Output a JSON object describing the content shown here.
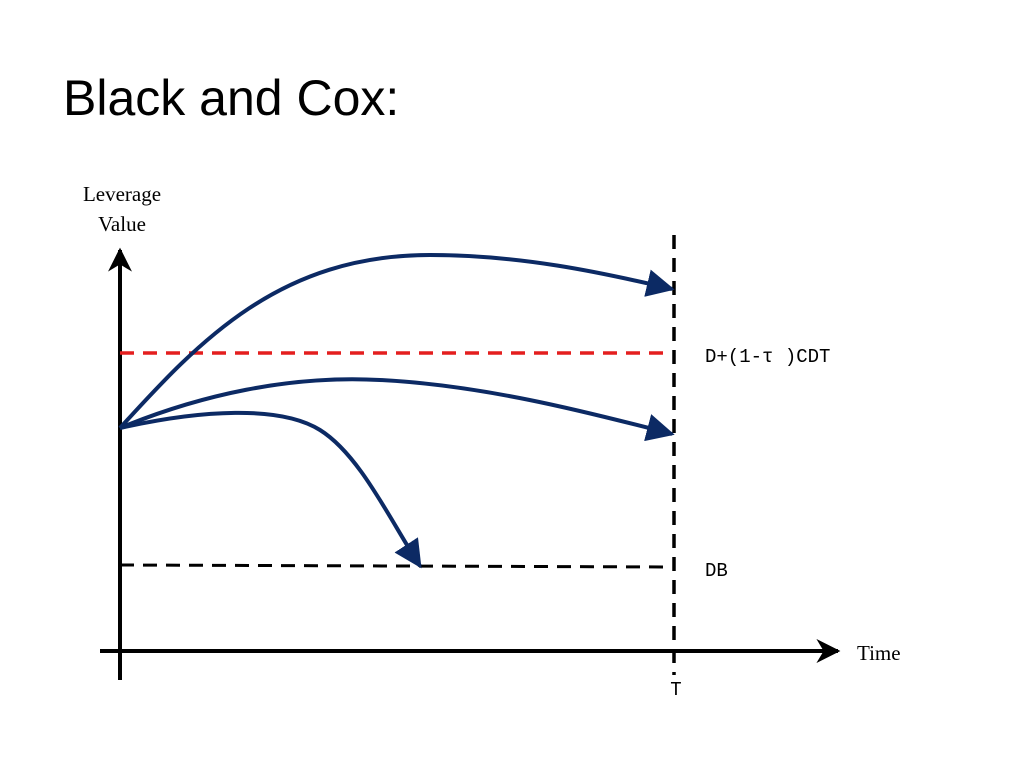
{
  "title": "Black and Cox:",
  "y_axis_label": [
    "Leverage",
    "Value"
  ],
  "x_axis_label": "Time",
  "levels": [
    {
      "label": "D+(1-τ )CDT"
    },
    {
      "label": "DB"
    }
  ],
  "x_marker": "T"
}
